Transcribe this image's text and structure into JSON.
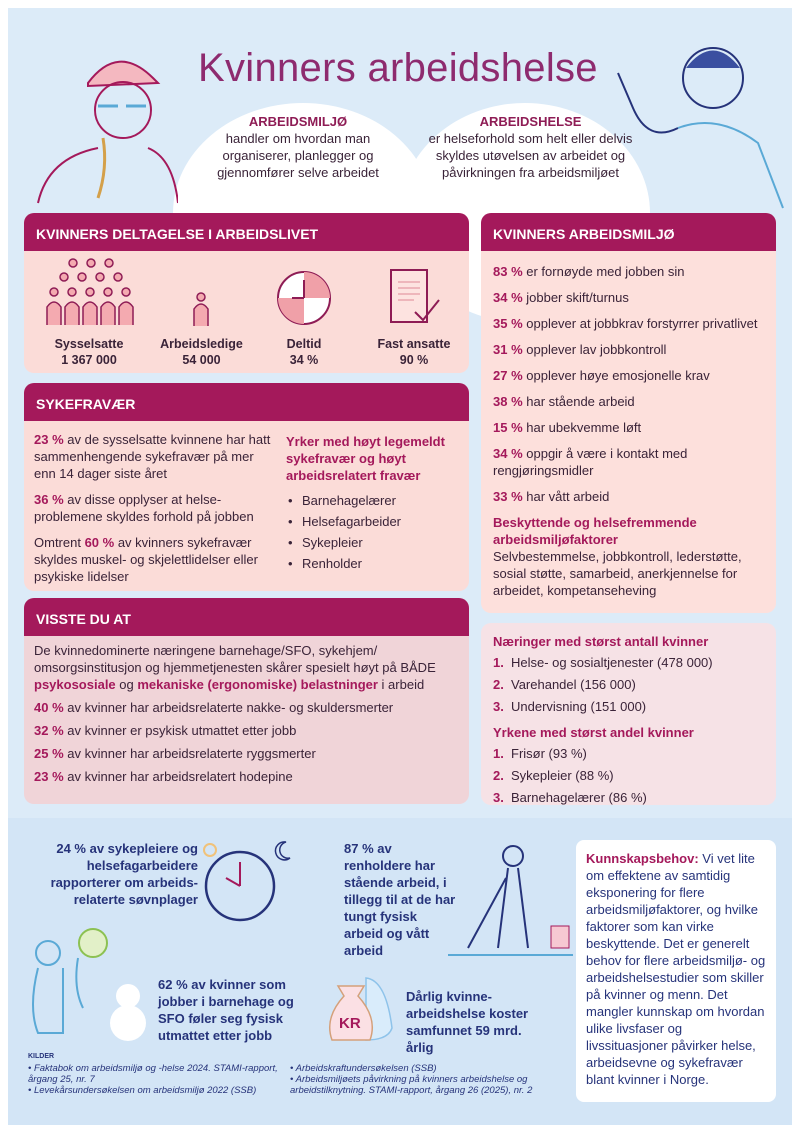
{
  "title": "Kvinners arbeidshelse",
  "definitions": [
    {
      "heading": "ARBEIDSMILJØ",
      "text": "handler om hvordan man organiserer, planlegger og gjennomfører selve arbeidet"
    },
    {
      "heading": "ARBEIDSHELSE",
      "text": "er helseforhold som helt eller delvis skyldes utøvelsen av arbeidet og påvirkningen fra arbeidsmiljøet"
    }
  ],
  "colors": {
    "accent": "#a4195b",
    "background": "#dcebf8",
    "panel": "#fbdcd8",
    "navy": "#26337a"
  },
  "participation": {
    "heading": "KVINNERS DELTAGELSE I ARBEIDSLIVET",
    "stats": [
      {
        "label": "Sysselsatte",
        "value": "1 367 000",
        "icon": "people-group-icon"
      },
      {
        "label": "Arbeidsledige",
        "value": "54 000",
        "icon": "person-icon"
      },
      {
        "label": "Deltid",
        "value": "34 %",
        "icon": "clock-icon"
      },
      {
        "label": "Fast ansatte",
        "value": "90 %",
        "icon": "contract-icon"
      }
    ]
  },
  "sickleave": {
    "heading": "SYKEFRAVÆR",
    "items": [
      {
        "pre": "",
        "pct": "23 %",
        "text": " av de sysselsatte kvinnene har hatt sammenhengende sykefravær på mer enn 14 dager siste året"
      },
      {
        "pre": "",
        "pct": "36 %",
        "text": " av disse opplyser at helse-problemene skyldes forhold på jobben"
      },
      {
        "pre": "Omtrent ",
        "pct": "60 %",
        "text": " av kvinners sykefravær skyldes muskel- og skjelettlidelser eller psykiske lidelser"
      }
    ],
    "occupations_heading": "Yrker med høyt legemeldt sykefravær og høyt arbeidsrelatert fravær",
    "occupations": [
      "Barnehagelærer",
      "Helsefagarbeider",
      "Sykepleier",
      "Renholder"
    ]
  },
  "didyouknow": {
    "heading": "VISSTE DU AT",
    "intro_a": "De kvinnedominerte næringene barnehage/SFO, sykehjem/ omsorgsinstitusjon og hjemmetjenesten skårer spesielt høyt på BÅDE ",
    "intro_b": "psykososiale",
    "intro_c": " og ",
    "intro_d": "mekaniske (ergonomiske) belastninger",
    "intro_e": " i arbeid",
    "items": [
      {
        "pct": "40 %",
        "text": " av kvinner har arbeidsrelaterte nakke- og skuldersmerter"
      },
      {
        "pct": "32 %",
        "text": " av kvinner er psykisk utmattet etter jobb"
      },
      {
        "pct": "25 %",
        "text": " av kvinner har arbeidsrelaterte ryggsmerter"
      },
      {
        "pct": "23 %",
        "text": " av kvinner har arbeidsrelatert hodepine"
      }
    ]
  },
  "environment": {
    "heading": "KVINNERS ARBEIDSMILJØ",
    "items": [
      {
        "pct": "83 %",
        "text": " er fornøyde med jobben sin"
      },
      {
        "pct": "34 %",
        "text": " jobber skift/turnus"
      },
      {
        "pct": "35 %",
        "text": " opplever at jobbkrav forstyrrer privatlivet"
      },
      {
        "pct": "31 %",
        "text": " opplever lav jobbkontroll"
      },
      {
        "pct": "27 %",
        "text": " opplever høye emosjonelle krav"
      },
      {
        "pct": "38 %",
        "text": " har stående arbeid"
      },
      {
        "pct": "15 %",
        "text": " har ubekvemme løft"
      },
      {
        "pct": "34 %",
        "text": " oppgir å være i kontakt med rengjøringsmidler"
      },
      {
        "pct": "33 %",
        "text": " har vått arbeid"
      }
    ],
    "protective_heading": "Beskyttende og helsefremmende arbeidsmiljøfaktorer",
    "protective_text": "Selvbestemmelse, jobbkontroll, lederstøtte, sosial støtte, samarbeid, anerkjennelse for arbeidet, kompetanseheving"
  },
  "industries": {
    "heading": "Næringer med størst antall kvinner",
    "items": [
      "Helse- og sosialtjenester (478 000)",
      "Varehandel (156 000)",
      "Undervisning (151 000)"
    ],
    "occ_heading": "Yrkene med størst andel kvinner",
    "occ_items": [
      "Frisør (93 %)",
      "Sykepleier (88 %)",
      "Barnehagelærer (86 %)"
    ]
  },
  "facts": {
    "sleep": "24 % av sykepleiere og helsefagarbeidere rapporterer om arbeids-relaterte søvnplager",
    "cleaners": "87 % av renholdere har stående arbeid, i tillegg til at de har tungt fysisk arbeid og vått arbeid",
    "kindergarten": "62 % av kvinner som jobber i barnehage og SFO føler seg fysisk utmattet etter jobb",
    "cost": "Dårlig kvinne-arbeidshelse koster samfunnet 59 mrd. årlig",
    "cost_icon_label": "KR"
  },
  "knowledge": {
    "heading": "Kunnskapsbehov:",
    "text": " Vi vet lite om effektene av samtidig eksponering for flere arbeidsmiljøfaktorer, og hvilke faktorer som kan virke beskyttende. Det er generelt behov for flere arbeidsmiljø- og arbeidshelsestudier som skiller på kvinner og menn. Det mangler kunnskap om hvordan ulike livsfaser og livssituasjoner påvirker helse, arbeidsevne og sykefravær blant kvinner i Norge."
  },
  "sources": {
    "heading": "KILDER",
    "items": [
      "Faktabok om arbeidsmiljø og -helse 2024. STAMI-rapport, årgang 25, nr. 7",
      "Levekårsundersøkelsen om arbeidsmiljø 2022 (SSB)",
      "Arbeidskraftundersøkelsen (SSB)",
      "Arbeidsmiljøets påvirkning på kvinners arbeidshelse og arbeidstilknytning. STAMI-rapport, årgang 26 (2025), nr. 2"
    ]
  }
}
